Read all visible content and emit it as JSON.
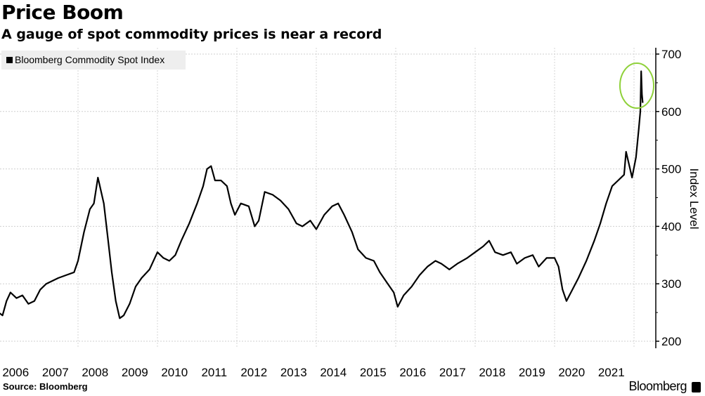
{
  "chart_data": {
    "type": "line",
    "title": "Price Boom",
    "subtitle": "A gauge of spot commodity prices is near a record",
    "ylabel": "Index Level",
    "xlabel": "",
    "ylim": [
      200,
      700
    ],
    "yticks": [
      "200",
      "300",
      "400",
      "500",
      "600",
      "700"
    ],
    "xlim": [
      2006,
      2022.5
    ],
    "xtick_labels": [
      "2006",
      "2007",
      "2008",
      "2009",
      "2010",
      "2011",
      "2012",
      "2013",
      "2014",
      "2015",
      "2016",
      "2017",
      "2018",
      "2019",
      "2020",
      "2021"
    ],
    "grid": true,
    "legend_position": "top-left",
    "line_color": "#000000",
    "highlight_color": "#8fd13a",
    "annotation": "circled recent peak",
    "series": [
      {
        "name": "Bloomberg Commodity Spot Index",
        "x": [
          2006.0,
          2006.1,
          2006.2,
          2006.3,
          2006.45,
          2006.6,
          2006.75,
          2006.9,
          2007.05,
          2007.2,
          2007.35,
          2007.5,
          2007.7,
          2007.9,
          2008.0,
          2008.15,
          2008.3,
          2008.4,
          2008.5,
          2008.55,
          2008.65,
          2008.75,
          2008.85,
          2008.95,
          2009.05,
          2009.15,
          2009.3,
          2009.45,
          2009.6,
          2009.8,
          2010.0,
          2010.15,
          2010.3,
          2010.45,
          2010.6,
          2010.8,
          2011.0,
          2011.15,
          2011.25,
          2011.35,
          2011.45,
          2011.6,
          2011.75,
          2011.85,
          2011.95,
          2012.1,
          2012.3,
          2012.45,
          2012.55,
          2012.7,
          2012.9,
          2013.1,
          2013.3,
          2013.5,
          2013.65,
          2013.85,
          2014.0,
          2014.2,
          2014.4,
          2014.55,
          2014.7,
          2014.9,
          2015.05,
          2015.25,
          2015.45,
          2015.6,
          2015.8,
          2015.95,
          2016.05,
          2016.2,
          2016.4,
          2016.6,
          2016.8,
          2017.0,
          2017.15,
          2017.35,
          2017.55,
          2017.8,
          2018.0,
          2018.2,
          2018.35,
          2018.5,
          2018.7,
          2018.9,
          2019.05,
          2019.25,
          2019.45,
          2019.6,
          2019.8,
          2020.0,
          2020.1,
          2020.2,
          2020.3,
          2020.45,
          2020.6,
          2020.8,
          2021.0,
          2021.15,
          2021.3,
          2021.45,
          2021.6,
          2021.75,
          2021.8,
          2021.9,
          2021.95,
          2022.05,
          2022.12,
          2022.16,
          2022.18,
          2022.2,
          2022.22
        ],
        "values": [
          250,
          245,
          270,
          285,
          275,
          280,
          265,
          270,
          290,
          300,
          305,
          310,
          315,
          320,
          340,
          390,
          430,
          440,
          485,
          470,
          440,
          380,
          320,
          270,
          240,
          245,
          265,
          295,
          310,
          325,
          355,
          345,
          340,
          350,
          375,
          405,
          440,
          470,
          500,
          505,
          480,
          480,
          470,
          440,
          420,
          440,
          435,
          400,
          410,
          460,
          455,
          445,
          430,
          405,
          400,
          410,
          395,
          420,
          435,
          440,
          420,
          390,
          360,
          345,
          340,
          320,
          300,
          285,
          260,
          280,
          295,
          315,
          330,
          340,
          335,
          325,
          335,
          345,
          355,
          365,
          375,
          355,
          350,
          355,
          335,
          345,
          350,
          330,
          345,
          345,
          330,
          290,
          270,
          290,
          310,
          340,
          375,
          405,
          440,
          470,
          480,
          490,
          530,
          500,
          485,
          520,
          570,
          600,
          670,
          630,
          615
        ]
      }
    ]
  },
  "legend": {
    "label": "Bloomberg Commodity Spot Index"
  },
  "footer": {
    "source": "Source: Bloomberg",
    "brand": "Bloomberg"
  }
}
